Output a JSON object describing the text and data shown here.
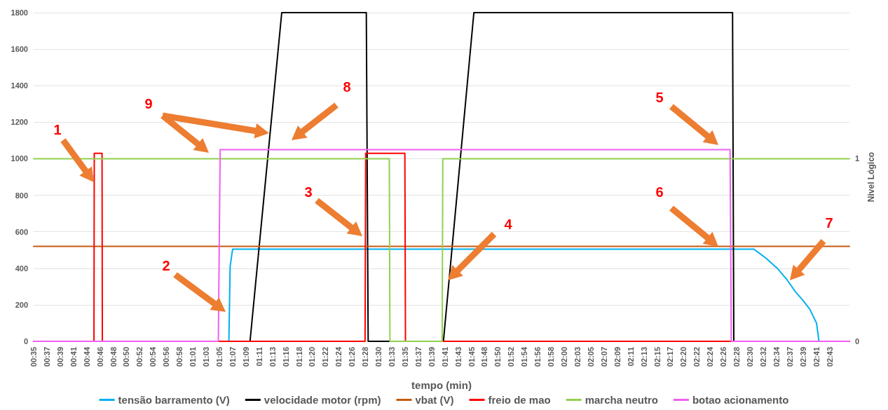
{
  "chart_data": {
    "type": "line",
    "xlabel": "tempo (min)",
    "y2label": "Nivel Lógico",
    "xlim": [
      35,
      166.2
    ],
    "xticks": [
      {
        "value": 35,
        "label": "00:35"
      },
      {
        "value": 37.13,
        "label": "00:37"
      },
      {
        "value": 39.27,
        "label": "00:39"
      },
      {
        "value": 41.4,
        "label": "00:41"
      },
      {
        "value": 43.53,
        "label": "00:44"
      },
      {
        "value": 45.67,
        "label": "00:46"
      },
      {
        "value": 47.8,
        "label": "00:48"
      },
      {
        "value": 49.93,
        "label": "00:50"
      },
      {
        "value": 52.07,
        "label": "00:52"
      },
      {
        "value": 54.2,
        "label": "00:54"
      },
      {
        "value": 56.33,
        "label": "00:56"
      },
      {
        "value": 58.47,
        "label": "00:58"
      },
      {
        "value": 60.6,
        "label": "01:01"
      },
      {
        "value": 62.73,
        "label": "01:03"
      },
      {
        "value": 64.87,
        "label": "01:05"
      },
      {
        "value": 67,
        "label": "01:07"
      },
      {
        "value": 69.13,
        "label": "01:09"
      },
      {
        "value": 71.27,
        "label": "01:11"
      },
      {
        "value": 73.4,
        "label": "01:13"
      },
      {
        "value": 75.53,
        "label": "01:16"
      },
      {
        "value": 77.67,
        "label": "01:18"
      },
      {
        "value": 79.8,
        "label": "01:20"
      },
      {
        "value": 81.93,
        "label": "01:22"
      },
      {
        "value": 84.07,
        "label": "01:24"
      },
      {
        "value": 86.2,
        "label": "01:26"
      },
      {
        "value": 88.33,
        "label": "01:28"
      },
      {
        "value": 90.47,
        "label": "01:30"
      },
      {
        "value": 92.6,
        "label": "01:33"
      },
      {
        "value": 94.73,
        "label": "01:35"
      },
      {
        "value": 96.87,
        "label": "01:37"
      },
      {
        "value": 99,
        "label": "01:39"
      },
      {
        "value": 101.13,
        "label": "01:41"
      },
      {
        "value": 103.27,
        "label": "01:43"
      },
      {
        "value": 105.4,
        "label": "01:45"
      },
      {
        "value": 107.53,
        "label": "01:48"
      },
      {
        "value": 109.67,
        "label": "01:50"
      },
      {
        "value": 111.8,
        "label": "01:52"
      },
      {
        "value": 113.93,
        "label": "01:54"
      },
      {
        "value": 116.07,
        "label": "01:56"
      },
      {
        "value": 118.2,
        "label": "01:58"
      },
      {
        "value": 120.33,
        "label": "02:00"
      },
      {
        "value": 122.5,
        "label": "02:03"
      },
      {
        "value": 124.6,
        "label": "02:05"
      },
      {
        "value": 126.73,
        "label": "02:07"
      },
      {
        "value": 128.87,
        "label": "02:09"
      },
      {
        "value": 131,
        "label": "02:11"
      },
      {
        "value": 133.13,
        "label": "02:13"
      },
      {
        "value": 135.27,
        "label": "02:15"
      },
      {
        "value": 137.4,
        "label": "02:17"
      },
      {
        "value": 139.53,
        "label": "02:20"
      },
      {
        "value": 141.67,
        "label": "02:22"
      },
      {
        "value": 143.8,
        "label": "02:24"
      },
      {
        "value": 145.93,
        "label": "02:26"
      },
      {
        "value": 148.07,
        "label": "02:28"
      },
      {
        "value": 150.2,
        "label": "02:30"
      },
      {
        "value": 152.33,
        "label": "02:32"
      },
      {
        "value": 154.47,
        "label": "02:34"
      },
      {
        "value": 156.6,
        "label": "02:37"
      },
      {
        "value": 158.73,
        "label": "02:39"
      },
      {
        "value": 160.87,
        "label": "02:41"
      },
      {
        "value": 163,
        "label": "02:43"
      }
    ],
    "ylim": [
      0,
      1800
    ],
    "yticks": [
      0,
      200,
      400,
      600,
      800,
      1000,
      1200,
      1400,
      1600,
      1800
    ],
    "y2lim": [
      0,
      1.8
    ],
    "y2ticks": [
      0,
      1
    ],
    "grid": "y",
    "legend": "bottom",
    "marker": "none",
    "annotations": [
      "1",
      "2",
      "3",
      "4",
      "5",
      "6",
      "7",
      "8",
      "9"
    ],
    "series": [
      {
        "name": "tensão barramento (V)",
        "color": "#00b0f0",
        "x": [
          35,
          66.4,
          66.6,
          67.0,
          150.8,
          152.8,
          154.7,
          156.2,
          157.5,
          158.7,
          159.8,
          160.9,
          161.3,
          166.2
        ],
        "values": [
          0,
          0,
          410,
          505,
          505,
          455,
          396,
          335,
          272,
          225,
          177,
          100,
          0,
          0
        ]
      },
      {
        "name": "velocidade motor (rpm)",
        "color": "#000000",
        "x": [
          35,
          69.8,
          74.9,
          88.5,
          88.8,
          100.9,
          105.8,
          147.4,
          147.6,
          166.2
        ],
        "values": [
          0,
          0,
          1800,
          1800,
          0,
          0,
          1800,
          1800,
          0,
          0
        ]
      },
      {
        "name": "vbat (V)",
        "color": "#c55a11",
        "x": [
          35,
          166.2
        ],
        "values": [
          520,
          520
        ]
      },
      {
        "name": "freio de mao",
        "color": "#ff0000",
        "axis": "y2",
        "x": [
          35,
          44.7,
          44.75,
          46.0,
          46.05,
          88.3,
          88.4,
          94.7,
          94.8,
          166.2
        ],
        "values": [
          0,
          0,
          1.03,
          1.03,
          0,
          0,
          1.03,
          1.03,
          0,
          0
        ]
      },
      {
        "name": "marcha neutro",
        "color": "#92d050",
        "axis": "y2",
        "x": [
          35,
          92.2,
          92.3,
          100.7,
          100.8,
          166.2
        ],
        "values": [
          1,
          1,
          0,
          0,
          1,
          1
        ]
      },
      {
        "name": "botao acionamento",
        "color": "#f060f0",
        "axis": "y2",
        "x": [
          35,
          64.7,
          65.0,
          147.0,
          147.2,
          166.2
        ],
        "values": [
          0,
          0,
          1.05,
          1.05,
          0,
          0
        ]
      }
    ]
  }
}
